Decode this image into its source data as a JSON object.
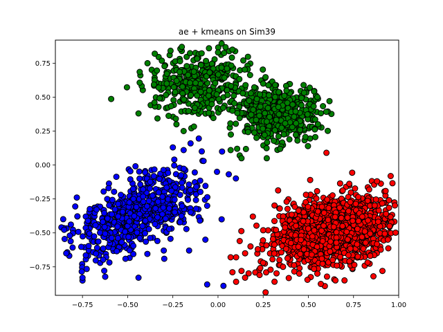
{
  "chart_data": {
    "type": "scatter",
    "title": "ae + kmeans on Sim39",
    "xlabel": "",
    "ylabel": "",
    "xlim": [
      -0.9,
      1.0
    ],
    "ylim": [
      -0.96,
      0.92
    ],
    "x_ticks": [
      -0.75,
      -0.5,
      -0.25,
      0.0,
      0.25,
      0.5,
      0.75,
      1.0
    ],
    "x_tick_labels": [
      "−0.75",
      "−0.50",
      "−0.25",
      "0.00",
      "0.25",
      "0.50",
      "0.75",
      "1.00"
    ],
    "y_ticks": [
      -0.75,
      -0.5,
      -0.25,
      0.0,
      0.25,
      0.5,
      0.75
    ],
    "y_tick_labels": [
      "−0.75",
      "−0.50",
      "−0.25",
      "0.00",
      "0.25",
      "0.50",
      "0.75"
    ],
    "grid": false,
    "legend": "none",
    "marker_edge_color": "#000000",
    "series": [
      {
        "color": "#008000",
        "clusters": [
          {
            "cx": -0.11,
            "cy": 0.6,
            "sx": 0.13,
            "sy": 0.11,
            "n": 380
          },
          {
            "cx": 0.33,
            "cy": 0.38,
            "sx": 0.11,
            "sy": 0.1,
            "n": 520
          }
        ],
        "points": [
          [
            -0.23,
            0.3
          ],
          [
            -0.19,
            0.25
          ],
          [
            -0.44,
            0.38
          ],
          [
            0.27,
            0.32
          ],
          [
            0.08,
            0.4
          ],
          [
            0.12,
            0.07
          ],
          [
            -0.2,
            0.87
          ],
          [
            -0.05,
            0.86
          ],
          [
            0.08,
            0.85
          ],
          [
            0.13,
            0.05
          ],
          [
            0.07,
            0.11
          ],
          [
            0.27,
            0.05
          ],
          [
            0.55,
            0.5
          ],
          [
            -0.39,
            0.75
          ],
          [
            0.25,
            0.6
          ],
          [
            0.44,
            0.18
          ],
          [
            -0.35,
            0.82
          ],
          [
            0.14,
            0.77
          ]
        ]
      },
      {
        "color": "#0000ff",
        "clusters": [
          {
            "cx": -0.45,
            "cy": -0.35,
            "sx": 0.18,
            "sy": 0.17,
            "n": 620,
            "rho": 0.6
          }
        ],
        "points": [
          [
            -0.25,
            0.13
          ],
          [
            -0.19,
            0.11
          ],
          [
            -0.09,
            0.1
          ],
          [
            -0.08,
            0.03
          ],
          [
            -0.06,
            -0.3
          ],
          [
            -0.07,
            -0.55
          ],
          [
            -0.16,
            -0.63
          ],
          [
            -0.1,
            -0.41
          ],
          [
            -0.27,
            -0.32
          ],
          [
            -0.44,
            -0.83
          ],
          [
            -0.75,
            -0.83
          ],
          [
            -0.82,
            -0.52
          ],
          [
            -0.84,
            -0.65
          ],
          [
            -0.06,
            -0.88
          ],
          [
            0.03,
            -0.89
          ],
          [
            0.02,
            -0.4
          ],
          [
            -0.3,
            -0.63
          ],
          [
            -0.12,
            -0.16
          ]
        ]
      },
      {
        "color": "#ff0000",
        "clusters": [
          {
            "cx": 0.63,
            "cy": -0.48,
            "sx": 0.16,
            "sy": 0.13,
            "n": 1350,
            "rho": 0.3
          }
        ],
        "points": [
          [
            0.08,
            -0.79
          ],
          [
            0.1,
            -0.86
          ],
          [
            0.13,
            -0.78
          ],
          [
            0.15,
            -0.83
          ],
          [
            0.07,
            -0.68
          ],
          [
            0.18,
            -0.6
          ],
          [
            0.12,
            -0.56
          ],
          [
            0.1,
            -0.68
          ],
          [
            0.6,
            0.09
          ],
          [
            0.51,
            -0.11
          ],
          [
            0.88,
            -0.12
          ],
          [
            0.91,
            -0.78
          ],
          [
            0.7,
            -0.85
          ],
          [
            0.86,
            -0.82
          ],
          [
            0.95,
            -0.45
          ],
          [
            0.36,
            -0.75
          ],
          [
            0.25,
            -0.72
          ],
          [
            0.23,
            -0.81
          ],
          [
            0.22,
            -0.62
          ],
          [
            0.15,
            -0.65
          ],
          [
            0.94,
            -0.55
          ],
          [
            0.93,
            -0.36
          ],
          [
            0.45,
            -0.8
          ],
          [
            0.55,
            -0.8
          ],
          [
            0.65,
            -0.85
          ]
        ]
      }
    ]
  }
}
